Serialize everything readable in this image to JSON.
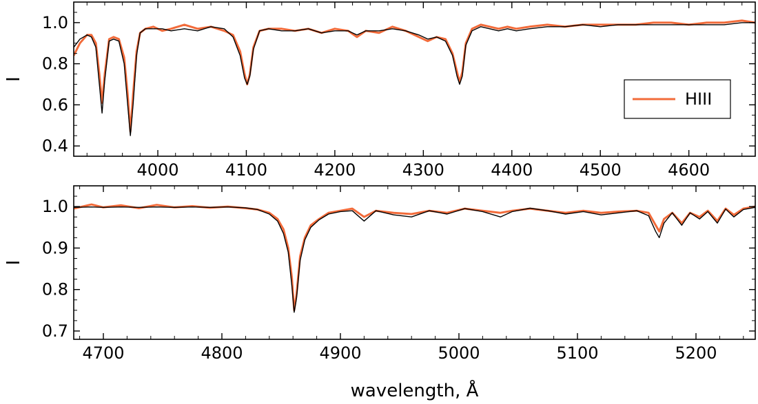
{
  "chart_data": [
    {
      "type": "line",
      "panel": "top",
      "xlim": [
        3905,
        4675
      ],
      "ylim": [
        0.35,
        1.1
      ],
      "xticks": [
        4000,
        4100,
        4200,
        4300,
        4400,
        4500,
        4600
      ],
      "yticks": [
        0.4,
        0.6,
        0.8,
        1.0
      ],
      "xtick_labels": [
        "4000",
        "4100",
        "4200",
        "4300",
        "4400",
        "4500",
        "4600"
      ],
      "ytick_labels": [
        "0.4",
        "0.6",
        "0.8",
        "1.0"
      ],
      "xlabel": "",
      "ylabel": "I",
      "grid": false,
      "legend": {
        "placement": "right",
        "entries": [
          {
            "label": "HIII",
            "color": "#f26b3a"
          }
        ]
      },
      "series": [
        {
          "name": "HIII",
          "color": "#f26b3a",
          "x": [
            3905,
            3912,
            3920,
            3925,
            3930,
            3934,
            3937,
            3940,
            3945,
            3950,
            3956,
            3962,
            3966,
            3969,
            3972,
            3976,
            3980,
            3986,
            3995,
            4005,
            4015,
            4030,
            4045,
            4060,
            4075,
            4085,
            4093,
            4098,
            4101,
            4104,
            4108,
            4115,
            4125,
            4140,
            4155,
            4170,
            4185,
            4200,
            4215,
            4225,
            4235,
            4250,
            4265,
            4280,
            4295,
            4305,
            4315,
            4325,
            4333,
            4338,
            4341,
            4344,
            4348,
            4355,
            4365,
            4375,
            4385,
            4395,
            4405,
            4420,
            4440,
            4460,
            4480,
            4500,
            4520,
            4540,
            4560,
            4580,
            4600,
            4620,
            4640,
            4660,
            4675
          ],
          "y": [
            0.84,
            0.9,
            0.94,
            0.94,
            0.9,
            0.75,
            0.61,
            0.75,
            0.92,
            0.93,
            0.92,
            0.83,
            0.65,
            0.47,
            0.65,
            0.86,
            0.95,
            0.97,
            0.98,
            0.96,
            0.97,
            0.99,
            0.97,
            0.98,
            0.96,
            0.94,
            0.86,
            0.75,
            0.7,
            0.75,
            0.88,
            0.96,
            0.97,
            0.97,
            0.96,
            0.97,
            0.95,
            0.97,
            0.96,
            0.93,
            0.96,
            0.95,
            0.98,
            0.96,
            0.93,
            0.91,
            0.93,
            0.92,
            0.85,
            0.76,
            0.71,
            0.76,
            0.9,
            0.97,
            0.99,
            0.98,
            0.97,
            0.98,
            0.97,
            0.98,
            0.99,
            0.98,
            0.99,
            0.99,
            0.99,
            0.99,
            1.0,
            1.0,
            0.99,
            1.0,
            1.0,
            1.01,
            1.0
          ]
        },
        {
          "name": "",
          "color": "#000000",
          "x": [
            3905,
            3912,
            3920,
            3925,
            3930,
            3934,
            3937,
            3940,
            3945,
            3950,
            3956,
            3962,
            3966,
            3969,
            3972,
            3976,
            3980,
            3986,
            3995,
            4005,
            4015,
            4030,
            4045,
            4060,
            4075,
            4085,
            4093,
            4098,
            4101,
            4104,
            4108,
            4115,
            4125,
            4140,
            4155,
            4170,
            4185,
            4200,
            4215,
            4225,
            4235,
            4250,
            4265,
            4280,
            4295,
            4305,
            4315,
            4325,
            4333,
            4338,
            4341,
            4344,
            4348,
            4355,
            4365,
            4375,
            4385,
            4395,
            4405,
            4420,
            4440,
            4460,
            4480,
            4500,
            4520,
            4540,
            4560,
            4580,
            4600,
            4620,
            4640,
            4660,
            4675
          ],
          "y": [
            0.88,
            0.92,
            0.94,
            0.93,
            0.88,
            0.7,
            0.56,
            0.72,
            0.91,
            0.92,
            0.91,
            0.8,
            0.6,
            0.45,
            0.6,
            0.84,
            0.95,
            0.97,
            0.97,
            0.97,
            0.96,
            0.97,
            0.96,
            0.98,
            0.97,
            0.93,
            0.84,
            0.73,
            0.7,
            0.74,
            0.87,
            0.96,
            0.97,
            0.96,
            0.96,
            0.97,
            0.95,
            0.96,
            0.96,
            0.94,
            0.96,
            0.96,
            0.97,
            0.96,
            0.94,
            0.92,
            0.93,
            0.91,
            0.84,
            0.74,
            0.7,
            0.74,
            0.89,
            0.96,
            0.98,
            0.97,
            0.96,
            0.97,
            0.96,
            0.97,
            0.98,
            0.98,
            0.99,
            0.98,
            0.99,
            0.99,
            0.99,
            0.99,
            0.99,
            0.99,
            0.99,
            1.0,
            1.0
          ]
        }
      ]
    },
    {
      "type": "line",
      "panel": "bottom",
      "xlim": [
        4675,
        5250
      ],
      "ylim": [
        0.68,
        1.05
      ],
      "xticks": [
        4700,
        4800,
        4900,
        5000,
        5100,
        5200
      ],
      "yticks": [
        0.7,
        0.8,
        0.9,
        1.0
      ],
      "xtick_labels": [
        "4700",
        "4800",
        "4900",
        "5000",
        "5100",
        "5200"
      ],
      "ytick_labels": [
        "0.7",
        "0.8",
        "0.9",
        "1.0"
      ],
      "xlabel": "wavelength, Å",
      "ylabel": "I",
      "grid": false,
      "series": [
        {
          "name": "HIII",
          "color": "#f26b3a",
          "x": [
            4675,
            4690,
            4700,
            4715,
            4730,
            4745,
            4760,
            4775,
            4790,
            4805,
            4820,
            4830,
            4840,
            4847,
            4852,
            4856,
            4859,
            4861,
            4863,
            4866,
            4870,
            4875,
            4882,
            4890,
            4900,
            4910,
            4920,
            4930,
            4945,
            4960,
            4975,
            4990,
            5005,
            5020,
            5035,
            5045,
            5060,
            5075,
            5090,
            5105,
            5120,
            5135,
            5150,
            5160,
            5166,
            5169,
            5173,
            5180,
            5188,
            5195,
            5203,
            5210,
            5218,
            5225,
            5232,
            5240,
            5250
          ],
          "y": [
            0.995,
            1.005,
            0.998,
            1.003,
            0.996,
            1.004,
            0.998,
            1.001,
            0.997,
            1.0,
            0.996,
            0.993,
            0.985,
            0.97,
            0.945,
            0.9,
            0.83,
            0.75,
            0.79,
            0.88,
            0.925,
            0.955,
            0.97,
            0.985,
            0.99,
            0.995,
            0.975,
            0.99,
            0.985,
            0.982,
            0.99,
            0.985,
            0.995,
            0.99,
            0.985,
            0.99,
            0.995,
            0.99,
            0.985,
            0.99,
            0.985,
            0.988,
            0.99,
            0.985,
            0.955,
            0.94,
            0.97,
            0.985,
            0.96,
            0.985,
            0.975,
            0.99,
            0.965,
            0.995,
            0.98,
            0.995,
            1.0
          ]
        },
        {
          "name": "",
          "color": "#000000",
          "x": [
            4675,
            4690,
            4700,
            4715,
            4730,
            4745,
            4760,
            4775,
            4790,
            4805,
            4820,
            4830,
            4840,
            4847,
            4852,
            4856,
            4859,
            4861,
            4863,
            4866,
            4870,
            4875,
            4882,
            4890,
            4900,
            4910,
            4920,
            4930,
            4945,
            4960,
            4975,
            4990,
            5005,
            5020,
            5035,
            5045,
            5060,
            5075,
            5090,
            5105,
            5120,
            5135,
            5150,
            5160,
            5166,
            5169,
            5173,
            5180,
            5188,
            5195,
            5203,
            5210,
            5218,
            5225,
            5232,
            5240,
            5250
          ],
          "y": [
            0.998,
            0.999,
            0.998,
            0.999,
            0.998,
            0.999,
            0.998,
            0.999,
            0.998,
            0.999,
            0.997,
            0.993,
            0.982,
            0.965,
            0.935,
            0.89,
            0.81,
            0.745,
            0.78,
            0.87,
            0.92,
            0.95,
            0.968,
            0.982,
            0.988,
            0.99,
            0.965,
            0.99,
            0.98,
            0.975,
            0.99,
            0.982,
            0.995,
            0.988,
            0.975,
            0.988,
            0.996,
            0.99,
            0.982,
            0.988,
            0.98,
            0.985,
            0.99,
            0.978,
            0.94,
            0.925,
            0.96,
            0.985,
            0.955,
            0.985,
            0.97,
            0.988,
            0.96,
            0.994,
            0.975,
            0.993,
            0.998
          ]
        }
      ]
    }
  ]
}
